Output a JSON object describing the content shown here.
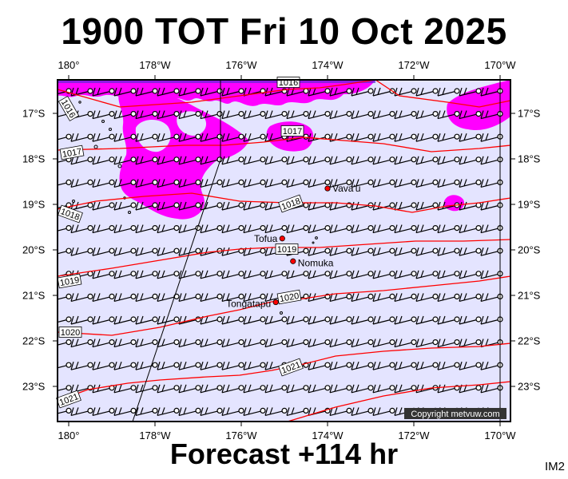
{
  "title": "1900 TOT Fri 10 Oct 2025",
  "forecast": "Forecast +114 hr",
  "model": "IM2",
  "copyright": "Copyright metvuw.com",
  "lon_ticks": [
    "180°",
    "178°W",
    "176°W",
    "174°W",
    "172°W",
    "170°W"
  ],
  "lon_values": [
    180,
    178,
    176,
    174,
    172,
    170
  ],
  "lat_ticks": [
    "17°S",
    "18°S",
    "19°S",
    "20°S",
    "21°S",
    "22°S",
    "23°S"
  ],
  "lat_values": [
    17,
    18,
    19,
    20,
    21,
    22,
    23
  ],
  "places": [
    {
      "name": "Vava'u",
      "lon": 174.0,
      "lat": 18.65
    },
    {
      "name": "Tofua",
      "lon": 175.05,
      "lat": 19.75
    },
    {
      "name": "Nomuka",
      "lon": 174.8,
      "lat": 20.25
    },
    {
      "name": "Tongatapu",
      "lon": 175.2,
      "lat": 21.15
    }
  ],
  "isobar_labels": [
    "1016",
    "1017",
    "1018",
    "1019",
    "1020",
    "1021"
  ],
  "colors": {
    "background": "#e4e4ff",
    "rain": "#ff00ff",
    "isobar": "#ff0000",
    "wind": "#000000",
    "place": "#ff0000"
  }
}
